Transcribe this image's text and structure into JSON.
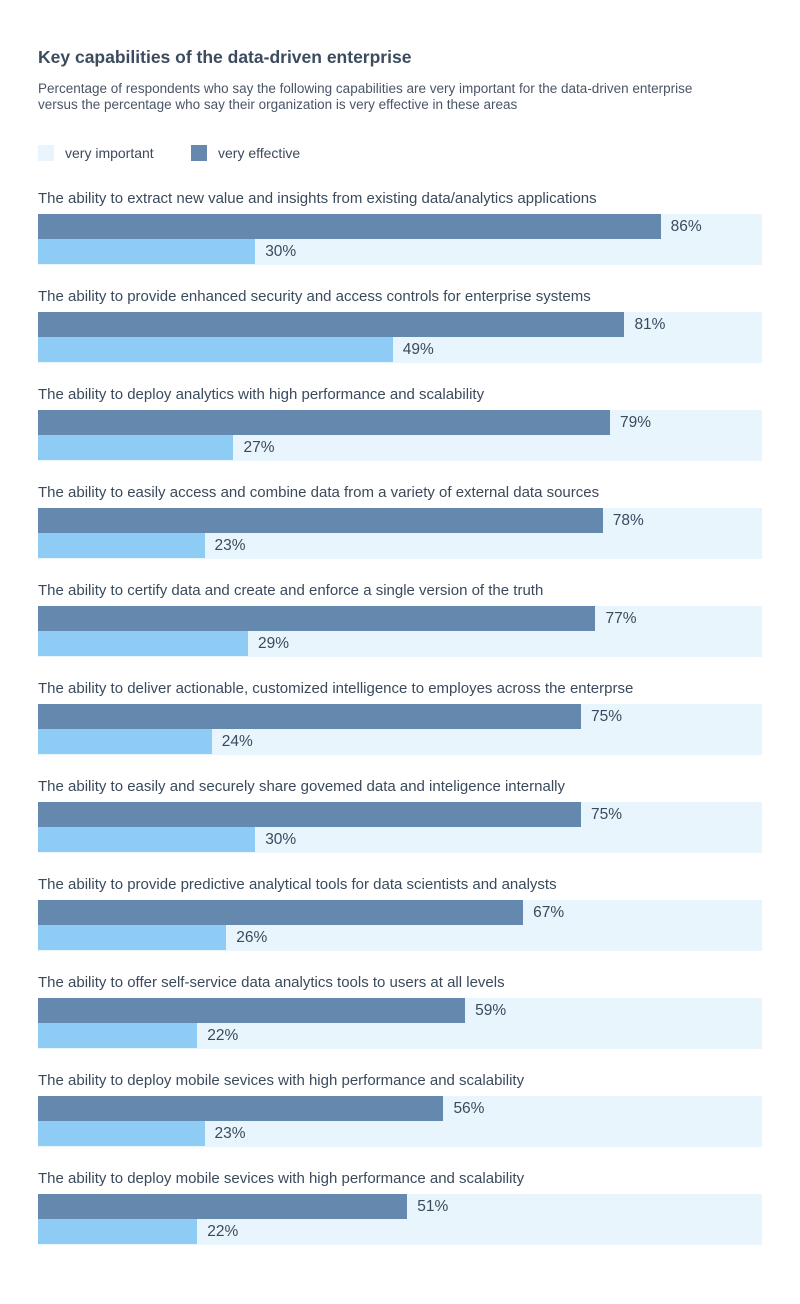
{
  "title": "Key capabilities of the data-driven enterprise",
  "subtitle": "Percentage of respondents who say the following capabilities are very important for the data-driven enterprise versus the percentage who say their organization is very effective in these areas",
  "legend": {
    "important_label": "very important",
    "effective_label": "very effective"
  },
  "colors": {
    "row_background": "#e8f5fd",
    "important_swatch": "#e8f5fd",
    "effective": "#6589ae",
    "second_bar": "#8ecbf5",
    "text": "#3a4a5c"
  },
  "chart_data": {
    "type": "bar",
    "orientation": "horizontal",
    "unit": "%",
    "xlim": [
      0,
      100
    ],
    "categories": [
      "The ability to extract new value and insights from existing data/analytics applications",
      "The ability to provide enhanced security and access controls for enterprise systems",
      "The ability to deploy analytics with high performance and scalability",
      "The ability to easily access and combine data from a variety of external data sources",
      "The ability to certify data and create and enforce a single version of the truth",
      "The ability to deliver actionable, customized intelligence to employes across the enterprse",
      "The ability to easily and securely share govemed data and inteligence internally",
      "The ability to provide predictive analytical tools for data scientists and analysts",
      "The ability to offer self-service data analytics tools to users at all levels",
      "The ability to deploy mobile sevices with high performance and scalability",
      "The ability to deploy mobile sevices with high performance and scalability"
    ],
    "series": [
      {
        "name": "very important",
        "values": [
          100,
          100,
          100,
          100,
          100,
          100,
          100,
          100,
          100,
          100,
          100
        ]
      },
      {
        "name": "very effective",
        "values": [
          86,
          81,
          79,
          78,
          77,
          75,
          75,
          67,
          59,
          56,
          51
        ]
      },
      {
        "values": [
          30,
          49,
          27,
          23,
          29,
          24,
          30,
          26,
          22,
          23,
          22
        ]
      }
    ],
    "value_labels": {
      "top": [
        "86%",
        "81%",
        "79%",
        "78%",
        "77%",
        "75%",
        "75%",
        "67%",
        "59%",
        "56%",
        "51%"
      ],
      "bottom": [
        "30%",
        "49%",
        "27%",
        "23%",
        "29%",
        "24%",
        "30%",
        "26%",
        "22%",
        "23%",
        "22%"
      ]
    }
  }
}
